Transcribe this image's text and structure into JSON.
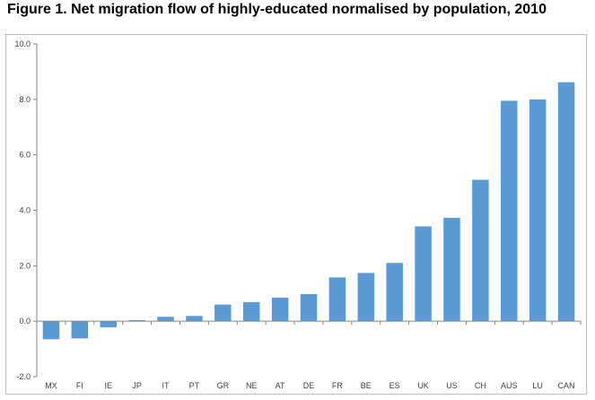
{
  "title": "Figure 1. Net migration flow of highly-educated normalised by population, 2010",
  "chart_data": {
    "type": "bar",
    "title": "Figure 1. Net migration flow of highly-educated normalised by population, 2010",
    "xlabel": "",
    "ylabel": "",
    "categories": [
      "MX",
      "FI",
      "IE",
      "JP",
      "IT",
      "PT",
      "GR",
      "NE",
      "AT",
      "DE",
      "FR",
      "BE",
      "ES",
      "UK",
      "US",
      "CH",
      "AUS",
      "LU",
      "CAN"
    ],
    "values": [
      -0.65,
      -0.62,
      -0.22,
      0.04,
      0.16,
      0.19,
      0.6,
      0.69,
      0.85,
      0.98,
      1.58,
      1.74,
      2.1,
      3.42,
      3.73,
      5.1,
      7.95,
      8.0,
      8.62
    ],
    "ylim": [
      -2.0,
      10.0
    ],
    "yticks": [
      "-2.0",
      "0.0",
      "2.0",
      "4.0",
      "6.0",
      "8.0",
      "10.0"
    ],
    "grid": false,
    "legend": "none",
    "bar_color": "#5b9bd5",
    "axis_color": "#868686"
  }
}
